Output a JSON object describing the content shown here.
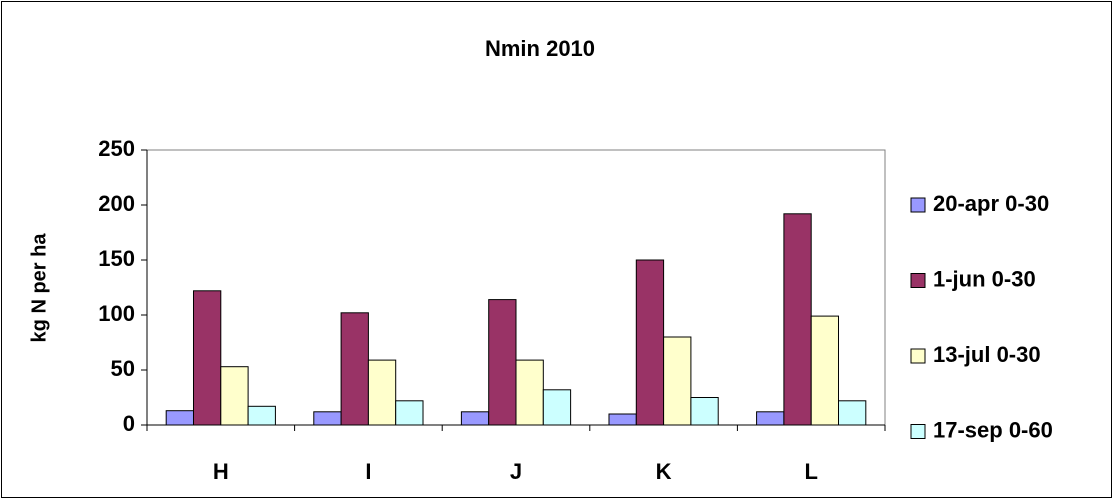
{
  "chart_data": {
    "type": "bar",
    "title": "Nmin 2010",
    "y_label": "kg N per ha",
    "categories": [
      "H",
      "I",
      "J",
      "K",
      "L"
    ],
    "series": [
      {
        "name": "20-apr 0-30",
        "color": "#9999ff",
        "values": [
          13,
          12,
          12,
          10,
          12
        ]
      },
      {
        "name": "1-jun 0-30",
        "color": "#993366",
        "values": [
          122,
          102,
          114,
          150,
          192
        ]
      },
      {
        "name": "13-jul 0-30",
        "color": "#ffffcc",
        "values": [
          53,
          59,
          59,
          80,
          99
        ]
      },
      {
        "name": "17-sep 0-60",
        "color": "#ccffff",
        "values": [
          17,
          22,
          32,
          25,
          22
        ]
      }
    ],
    "ylim": [
      0,
      250
    ],
    "yticks": [
      0,
      50,
      100,
      150,
      200,
      250
    ],
    "grid": false,
    "legend": "right"
  }
}
